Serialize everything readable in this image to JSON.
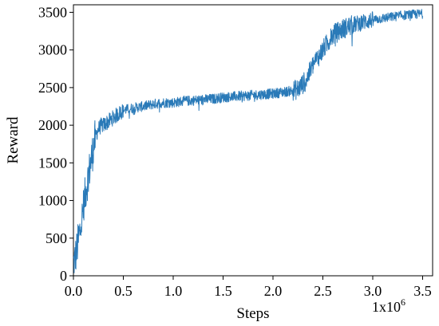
{
  "chart_data": {
    "type": "line",
    "title": "",
    "xlabel": "Steps",
    "ylabel": "Reward",
    "x_scale_label": "1x10",
    "x_scale_exponent": "6",
    "xlim": [
      0.0,
      3.6
    ],
    "ylim": [
      0,
      3600
    ],
    "x_ticks": [
      0.0,
      0.5,
      1.0,
      1.5,
      2.0,
      2.5,
      3.0,
      3.5
    ],
    "x_tick_labels": [
      "0.0",
      "0.5",
      "1.0",
      "1.5",
      "2.0",
      "2.5",
      "3.0",
      "3.5"
    ],
    "y_ticks": [
      0,
      500,
      1000,
      1500,
      2000,
      2500,
      3000,
      3500
    ],
    "y_tick_labels": [
      "0",
      "500",
      "1000",
      "1500",
      "2000",
      "2500",
      "3000",
      "3500"
    ],
    "grid": false,
    "line_color": "#2a7ab8",
    "series": [
      {
        "x": [
          0.0,
          0.02,
          0.04,
          0.06,
          0.08,
          0.1,
          0.12,
          0.14,
          0.16,
          0.18,
          0.2,
          0.22,
          0.25,
          0.28,
          0.3,
          0.35,
          0.4,
          0.45,
          0.5,
          0.6,
          0.7,
          0.8,
          0.9,
          1.0,
          1.1,
          1.2,
          1.3,
          1.4,
          1.5,
          1.6,
          1.7,
          1.8,
          1.9,
          2.0,
          2.1,
          2.2,
          2.25,
          2.3,
          2.35,
          2.4,
          2.45,
          2.5,
          2.55,
          2.6,
          2.7,
          2.8,
          2.9,
          3.0,
          3.1,
          3.2,
          3.3,
          3.4,
          3.5
        ],
        "y": [
          150,
          250,
          400,
          550,
          700,
          900,
          1100,
          1250,
          1400,
          1550,
          1700,
          1850,
          1950,
          2000,
          2000,
          2050,
          2100,
          2150,
          2200,
          2230,
          2250,
          2280,
          2300,
          2300,
          2320,
          2330,
          2340,
          2350,
          2370,
          2380,
          2390,
          2400,
          2410,
          2420,
          2440,
          2460,
          2480,
          2550,
          2650,
          2800,
          2900,
          3000,
          3100,
          3200,
          3280,
          3330,
          3370,
          3400,
          3420,
          3440,
          3460,
          3470,
          3480
        ]
      }
    ]
  }
}
